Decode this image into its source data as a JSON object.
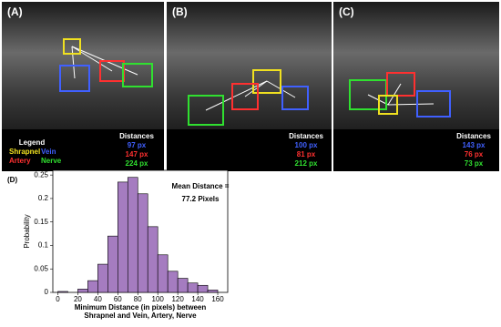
{
  "panels": [
    {
      "label": "(A)",
      "distances_title": "Distances",
      "distances": [
        {
          "text": "97 px",
          "color": "#4060ff"
        },
        {
          "text": "147 px",
          "color": "#ff3030"
        },
        {
          "text": "224 px",
          "color": "#30e030"
        }
      ]
    },
    {
      "label": "(B)",
      "distances_title": "Distances",
      "distances": [
        {
          "text": "100 px",
          "color": "#4060ff"
        },
        {
          "text": "81 px",
          "color": "#ff3030"
        },
        {
          "text": "212 px",
          "color": "#30e030"
        }
      ]
    },
    {
      "label": "(C)",
      "distances_title": "Distances",
      "distances": [
        {
          "text": "143 px",
          "color": "#4060ff"
        },
        {
          "text": "76 px",
          "color": "#ff3030"
        },
        {
          "text": "73 px",
          "color": "#30e030"
        }
      ]
    }
  ],
  "legend": {
    "title": "Legend",
    "items": [
      {
        "name": "Shrapnel",
        "color": "#f0e020"
      },
      {
        "name": "Vein",
        "color": "#4060ff"
      },
      {
        "name": "Artery",
        "color": "#ff3030"
      },
      {
        "name": "Nerve",
        "color": "#30e030"
      }
    ]
  },
  "chart_data": {
    "type": "histogram",
    "label": "(D)",
    "bins": [
      0,
      10,
      20,
      30,
      40,
      50,
      60,
      70,
      80,
      90,
      100,
      110,
      120,
      130,
      140,
      150,
      160
    ],
    "values": [
      0.002,
      0,
      0.007,
      0.025,
      0.06,
      0.12,
      0.235,
      0.245,
      0.21,
      0.14,
      0.08,
      0.045,
      0.03,
      0.02,
      0.015,
      0.005
    ],
    "color": "#a57cc0",
    "xlim": [
      -5,
      170
    ],
    "xticks": [
      0,
      20,
      40,
      60,
      80,
      100,
      120,
      140,
      160
    ],
    "ylim": [
      0,
      0.26
    ],
    "yticks": [
      0,
      0.05,
      0.1,
      0.15,
      0.2,
      0.25
    ],
    "xlabel": [
      "Minimum Distance (in pixels) between",
      "Shrapnel and Vein, Artery, Nerve"
    ],
    "ylabel": "Probability",
    "annotation": [
      "Mean Distance =",
      "77.2 Pixels"
    ]
  }
}
